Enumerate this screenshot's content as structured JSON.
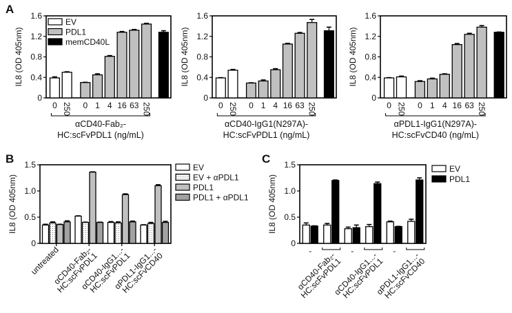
{
  "colors": {
    "ev": "#ffffff",
    "pdl1": "#c0c0c0",
    "memCD40L": "#000000",
    "pdl1_black": "#000000",
    "outline": "#000000"
  },
  "chart_data": [
    {
      "panel": "A",
      "type": "bar",
      "ylabel": "IL8 (OD 405nm)",
      "ylim": [
        0,
        1.6
      ],
      "yticks": [
        "0",
        "0.4",
        "0.8",
        "1.2",
        "1.6"
      ],
      "legend": [
        "EV",
        "PDL1",
        "memCD40L"
      ],
      "legend_placement": "top-left",
      "categories": [
        "0",
        "250",
        "0",
        "1",
        "4",
        "16",
        "63",
        "250",
        ""
      ],
      "groups": [
        "EV",
        "EV",
        "PDL1",
        "PDL1",
        "PDL1",
        "PDL1",
        "PDL1",
        "PDL1",
        "memCD40L"
      ],
      "values": [
        0.39,
        0.5,
        0.3,
        0.45,
        0.81,
        1.28,
        1.32,
        1.44,
        1.28
      ],
      "errors": [
        0.02,
        0.01,
        0.005,
        0.02,
        0.015,
        0.015,
        0.015,
        0.015,
        0.03
      ],
      "xlabel": [
        "αCD40-Fab₂-",
        "HC:scFvPDL1 (ng/mL)"
      ]
    },
    {
      "panel": "",
      "type": "bar",
      "ylabel": "IL8 (OD 405nm)",
      "ylim": [
        0,
        1.6
      ],
      "yticks": [
        "0",
        "0.4",
        "0.8",
        "1.2",
        "1.6"
      ],
      "categories": [
        "0",
        "250",
        "0",
        "1",
        "4",
        "16",
        "63",
        "250",
        ""
      ],
      "groups": [
        "EV",
        "EV",
        "PDL1",
        "PDL1",
        "PDL1",
        "PDL1",
        "PDL1",
        "PDL1",
        "memCD40L"
      ],
      "values": [
        0.39,
        0.54,
        0.29,
        0.33,
        0.55,
        1.05,
        1.26,
        1.47,
        1.31
      ],
      "errors": [
        0.005,
        0.015,
        0.005,
        0.02,
        0.02,
        0.015,
        0.015,
        0.06,
        0.07
      ],
      "xlabel": [
        "αCD40-IgG1(N297A)-",
        "HC:scFvPDL1 (ng/mL)"
      ]
    },
    {
      "panel": "",
      "type": "bar",
      "ylabel": "IL8 (OD 405nm)",
      "ylim": [
        0,
        1.6
      ],
      "yticks": [
        "0",
        "0.4",
        "0.8",
        "1.2",
        "1.6"
      ],
      "categories": [
        "0",
        "250",
        "0",
        "1",
        "4",
        "16",
        "63",
        "250",
        ""
      ],
      "groups": [
        "EV",
        "EV",
        "PDL1",
        "PDL1",
        "PDL1",
        "PDL1",
        "PDL1",
        "PDL1",
        "memCD40L"
      ],
      "values": [
        0.39,
        0.41,
        0.32,
        0.37,
        0.46,
        1.04,
        1.24,
        1.38,
        1.28
      ],
      "errors": [
        0.005,
        0.015,
        0.015,
        0.015,
        0.01,
        0.02,
        0.02,
        0.03,
        0.005
      ],
      "xlabel": [
        "αPDL1-IgG1(N297A)-",
        "HC:scFvCD40 (ng/mL)"
      ]
    },
    {
      "panel": "B",
      "type": "bar",
      "ylabel": "IL8 (OD 405nm)",
      "ylim": [
        0,
        1.5
      ],
      "yticks": [
        "0",
        "0.5",
        "1.0",
        "1.5"
      ],
      "legend_placement": "right",
      "categories": [
        [
          "untreated"
        ],
        [
          "αCD40-Fab₂-",
          "HC:scFvPDL1"
        ],
        [
          "αCD40-IgG1...-",
          "HC:scFvPDL1"
        ],
        [
          "αPDL1-IgG1...-",
          "HC:scFvCD40"
        ]
      ],
      "series": [
        {
          "name": "EV",
          "values": [
            0.35,
            0.52,
            0.4,
            0.35
          ],
          "errors": [
            0.015,
            0.005,
            0.015,
            0.005
          ]
        },
        {
          "name": "EV + αPDL1",
          "values": [
            0.39,
            0.4,
            0.39,
            0.38
          ],
          "errors": [
            0.02,
            0.005,
            0.02,
            0.02
          ]
        },
        {
          "name": "PDL1",
          "values": [
            0.36,
            1.36,
            0.93,
            1.1
          ],
          "errors": [
            0.005,
            0.005,
            0.015,
            0.02
          ]
        },
        {
          "name": "PDL1 + αPDL1",
          "values": [
            0.41,
            0.4,
            0.41,
            0.4
          ],
          "errors": [
            0.02,
            0.005,
            0.015,
            0.02
          ]
        }
      ]
    },
    {
      "panel": "C",
      "type": "bar",
      "ylabel": "IL8 (OD 405nm)",
      "ylim": [
        0,
        1.5
      ],
      "yticks": [
        "0",
        "0.5",
        "1.0",
        "1.5"
      ],
      "legend_placement": "right",
      "categories": [
        [
          "-"
        ],
        [
          "αCD40-Fab₂-",
          "HC:scFvPDL1"
        ],
        [
          "-"
        ],
        [
          "αCD40-IgG1...-",
          "HC:scFvPDL1"
        ],
        [
          "-"
        ],
        [
          "αPDL1-IgG1...-",
          "HC:scFvCD40"
        ]
      ],
      "series": [
        {
          "name": "EV",
          "values": [
            0.35,
            0.35,
            0.28,
            0.32,
            0.41,
            0.42
          ],
          "errors": [
            0.04,
            0.03,
            0.03,
            0.04,
            0.015,
            0.04
          ]
        },
        {
          "name": "PDL1",
          "values": [
            0.33,
            1.2,
            0.3,
            1.14,
            0.32,
            1.21
          ],
          "errors": [
            0.005,
            0.01,
            0.05,
            0.03,
            0.005,
            0.04
          ]
        }
      ]
    }
  ]
}
